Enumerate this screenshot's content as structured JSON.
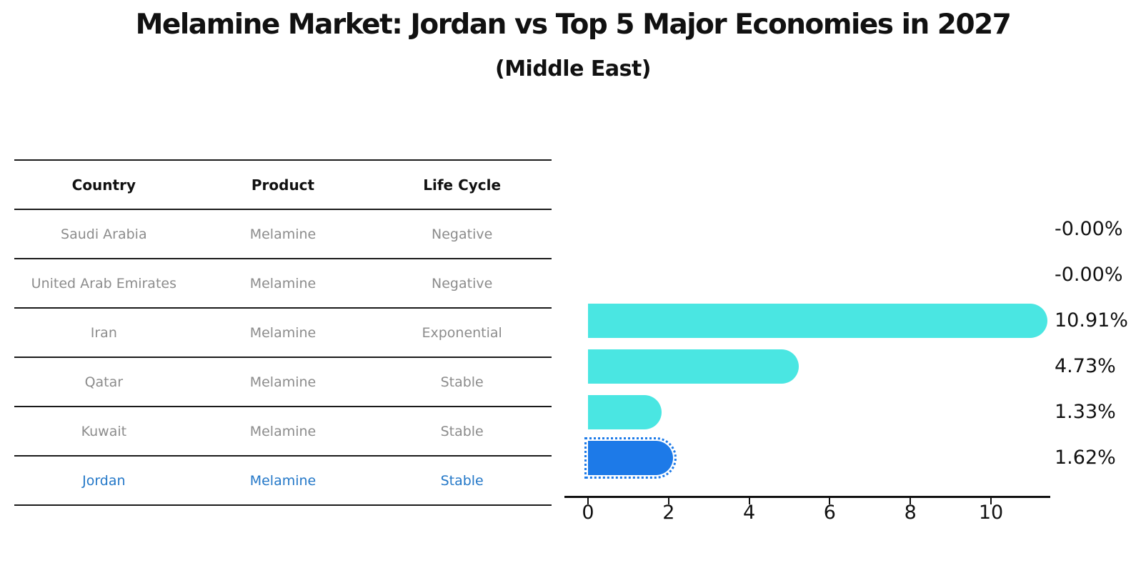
{
  "title": "Melamine Market: Jordan vs Top 5 Major Economies in 2027",
  "subtitle": "(Middle East)",
  "table": {
    "headers": [
      "Country",
      "Product",
      "Life Cycle"
    ],
    "rows": [
      {
        "country": "Saudi Arabia",
        "product": "Melamine",
        "life_cycle": "Negative",
        "highlight": false
      },
      {
        "country": "United Arab Emirates",
        "product": "Melamine",
        "life_cycle": "Negative",
        "highlight": false
      },
      {
        "country": "Iran",
        "product": "Melamine",
        "life_cycle": "Exponential",
        "highlight": false
      },
      {
        "country": "Qatar",
        "product": "Melamine",
        "life_cycle": "Stable",
        "highlight": false
      },
      {
        "country": "Kuwait",
        "product": "Melamine",
        "life_cycle": "Stable",
        "highlight": false
      },
      {
        "country": "Jordan",
        "product": "Melamine",
        "life_cycle": "Stable",
        "highlight": true
      }
    ]
  },
  "chart_data": {
    "type": "bar",
    "orientation": "horizontal",
    "title": "Melamine Market: Jordan vs Top 5 Major Economies in 2027",
    "subtitle": "(Middle East)",
    "categories": [
      "Saudi Arabia",
      "United Arab Emirates",
      "Iran",
      "Qatar",
      "Kuwait",
      "Jordan"
    ],
    "values": [
      -0.0,
      -0.0,
      10.91,
      4.73,
      1.33,
      1.62
    ],
    "value_labels": [
      "-0.00%",
      "-0.00%",
      "10.91%",
      "4.73%",
      "1.33%",
      "1.62%"
    ],
    "x_ticks": [
      0,
      2,
      4,
      6,
      8,
      10
    ],
    "xlim": [
      -0.58,
      11.45
    ],
    "xlabel": "",
    "ylabel": "",
    "grid": false,
    "legend": false,
    "bar_color": "#4ae6e2",
    "highlight_bar_color": "#1d7ae8",
    "highlight_index": 5,
    "highlight_edge_style": "dotted"
  }
}
